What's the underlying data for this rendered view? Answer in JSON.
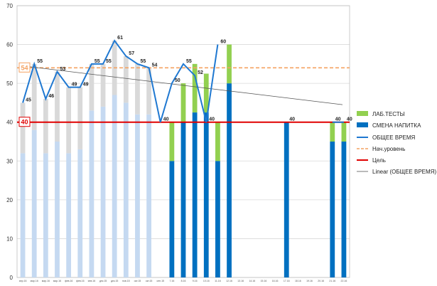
{
  "chart_data": {
    "type": "bar",
    "title": "",
    "xlabel": "",
    "ylabel": "",
    "ylim": [
      0,
      70
    ],
    "yticks": [
      0,
      10,
      20,
      30,
      40,
      50,
      60,
      70
    ],
    "grid": true,
    "legend_position": "right",
    "categories": [
      "апр.16",
      "мар.16",
      "мар.16",
      "мар.16",
      "фев.16",
      "фев.16",
      "янв.16",
      "дек.15",
      "дек.15",
      "нов.15",
      "окт.15",
      "окт.15",
      "сен.15",
      "7.16",
      "8.16",
      "9.16",
      "10.16",
      "11.16",
      "12.16",
      "13.16",
      "14.16",
      "15.16",
      "16.16",
      "17.16",
      "18.16",
      "19.16",
      "20.16",
      "21.16",
      "22.16"
    ],
    "series": [
      {
        "name": "ЛАБ.ТЕСТЫ",
        "color": "#92d050",
        "values": [
          null,
          null,
          null,
          null,
          null,
          null,
          null,
          null,
          null,
          null,
          null,
          null,
          null,
          10,
          10,
          12.5,
          10,
          10,
          10,
          null,
          null,
          null,
          null,
          null,
          null,
          null,
          null,
          5,
          5
        ]
      },
      {
        "name": "СМЕНА НАПИТКА",
        "color": "#0070c0",
        "values": [
          null,
          null,
          null,
          null,
          null,
          null,
          null,
          null,
          null,
          null,
          null,
          null,
          null,
          30,
          40,
          42.5,
          42.5,
          30,
          50,
          null,
          null,
          null,
          null,
          40,
          null,
          null,
          null,
          35,
          35
        ]
      },
      {
        "name": "ОБЩЕЕ ВРЕМЯ",
        "color": "#1f78d1",
        "values": [
          45,
          55,
          46,
          53,
          49,
          49,
          55,
          55,
          61,
          57,
          55,
          54,
          40,
          50,
          55,
          52,
          40,
          60,
          null,
          null,
          null,
          null,
          null,
          null,
          null,
          null,
          null,
          40,
          40
        ]
      },
      {
        "name": "Нач.уровень",
        "color": "#f4a261",
        "value": 54
      },
      {
        "name": "Цель",
        "color": "#e00000",
        "value": 40
      },
      {
        "name": "Linear (ОБЩЕЕ ВРЕМЯ)",
        "color": "#555555"
      }
    ],
    "background_bars": {
      "values_upper": [
        45,
        55,
        46,
        53,
        49,
        49,
        55,
        55,
        61,
        57,
        55,
        54
      ],
      "values_lower": [
        32,
        38,
        32,
        35,
        32,
        33,
        43,
        44,
        47,
        45,
        42,
        42
      ]
    },
    "data_labels": [
      {
        "index": 0,
        "text": "45"
      },
      {
        "index": 1,
        "text": "55"
      },
      {
        "index": 2,
        "text": "46"
      },
      {
        "index": 3,
        "text": "53"
      },
      {
        "index": 4,
        "text": "49"
      },
      {
        "index": 5,
        "text": "49"
      },
      {
        "index": 6,
        "text": "55"
      },
      {
        "index": 7,
        "text": "55"
      },
      {
        "index": 8,
        "text": "61"
      },
      {
        "index": 9,
        "text": "57"
      },
      {
        "index": 10,
        "text": "55"
      },
      {
        "index": 11,
        "text": "54"
      },
      {
        "index": 12,
        "text": "40"
      },
      {
        "index": 13,
        "text": "50"
      },
      {
        "index": 14,
        "text": "55"
      },
      {
        "index": 15,
        "text": "52"
      },
      {
        "index": 16,
        "text": "40"
      },
      {
        "index": 17,
        "text": "60"
      },
      {
        "index": 23,
        "text": "40"
      },
      {
        "index": 27,
        "text": "40"
      },
      {
        "index": 28,
        "text": "40"
      }
    ],
    "badges": {
      "start_level": "54",
      "target": "40"
    },
    "trend": {
      "start": 54.5,
      "end": 44.5
    }
  }
}
